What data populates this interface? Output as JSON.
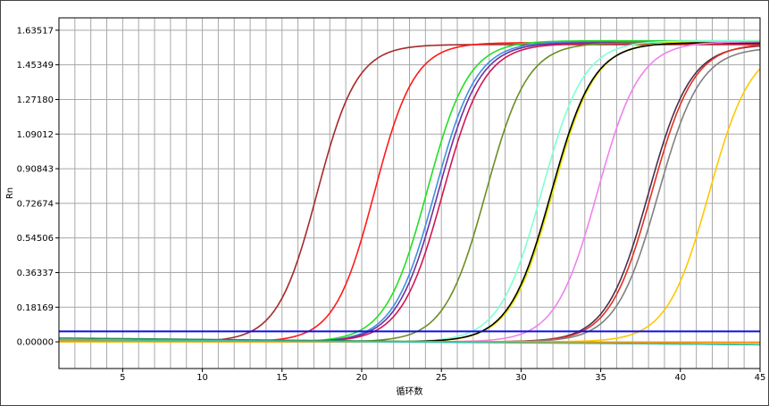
{
  "chart_data": {
    "type": "line",
    "title": "",
    "xlabel": "循环数",
    "ylabel": "Rn",
    "xlim": [
      1,
      45
    ],
    "ylim": [
      -0.14,
      1.7
    ],
    "grid": true,
    "x_ticks": [
      5,
      10,
      15,
      20,
      25,
      30,
      35,
      40,
      45
    ],
    "y_ticks": [
      0.0,
      0.1817,
      0.36337,
      0.54506,
      0.72674,
      0.90843,
      1.09012,
      1.2718,
      1.45349,
      1.63517
    ],
    "y_tick_labels": [
      "0.00000",
      "0.18169",
      "0.36337",
      "0.54506",
      "0.72674",
      "0.90843",
      "1.09012",
      "1.27180",
      "1.45349",
      "1.63517"
    ],
    "threshold": {
      "value": 0.055,
      "color": "#1010e0"
    },
    "series": [
      {
        "color": "#a52a2a",
        "ct": 17.2,
        "plateau": 1.56,
        "slope": 1.25,
        "base": 0.0
      },
      {
        "color": "#ff1a1a",
        "ct": 20.8,
        "plateau": 1.57,
        "slope": 1.25,
        "base": 0.0
      },
      {
        "color": "#22e022",
        "ct": 24.1,
        "plateau": 1.58,
        "slope": 1.3,
        "base": 0.0
      },
      {
        "color": "#3f8fe0",
        "ct": 24.6,
        "plateau": 1.575,
        "slope": 1.3,
        "base": 0.0
      },
      {
        "color": "#7030a0",
        "ct": 24.8,
        "plateau": 1.57,
        "slope": 1.3,
        "base": 0.0
      },
      {
        "color": "#d01850",
        "ct": 25.1,
        "plateau": 1.565,
        "slope": 1.3,
        "base": 0.0
      },
      {
        "color": "#6b8e23",
        "ct": 27.8,
        "plateau": 1.57,
        "slope": 1.3,
        "base": 0.0
      },
      {
        "color": "#7fffd4",
        "ct": 31.3,
        "plateau": 1.58,
        "slope": 1.32,
        "base": 0.0
      },
      {
        "color": "#e6e600",
        "ct": 32.0,
        "plateau": 1.575,
        "slope": 1.32,
        "base": 0.0
      },
      {
        "color": "#000000",
        "ct": 31.9,
        "plateau": 1.57,
        "slope": 1.32,
        "base": 0.0
      },
      {
        "color": "#ee82ee",
        "ct": 34.8,
        "plateau": 1.575,
        "slope": 1.32,
        "base": 0.0
      },
      {
        "color": "#4b2e4b",
        "ct": 38.0,
        "plateau": 1.56,
        "slope": 1.32,
        "base": 0.0
      },
      {
        "color": "#e03020",
        "ct": 38.2,
        "plateau": 1.565,
        "slope": 1.32,
        "base": 0.0
      },
      {
        "color": "#808080",
        "ct": 38.6,
        "plateau": 1.545,
        "slope": 1.32,
        "base": 0.0
      },
      {
        "color": "#ffc800",
        "ct": 41.8,
        "plateau": 1.56,
        "slope": 1.32,
        "base": 0.0
      },
      {
        "color": "#2e8b57",
        "ct": null,
        "plateau": 0.0,
        "slope": 1.0,
        "base": 0.02,
        "drift": -0.0008
      },
      {
        "color": "#ff8c00",
        "ct": null,
        "plateau": 0.0,
        "slope": 1.0,
        "base": 0.005,
        "drift": -0.0002
      },
      {
        "color": "#40c0a0",
        "ct": null,
        "plateau": 0.0,
        "slope": 1.0,
        "base": 0.012,
        "drift": -0.0006
      }
    ]
  }
}
